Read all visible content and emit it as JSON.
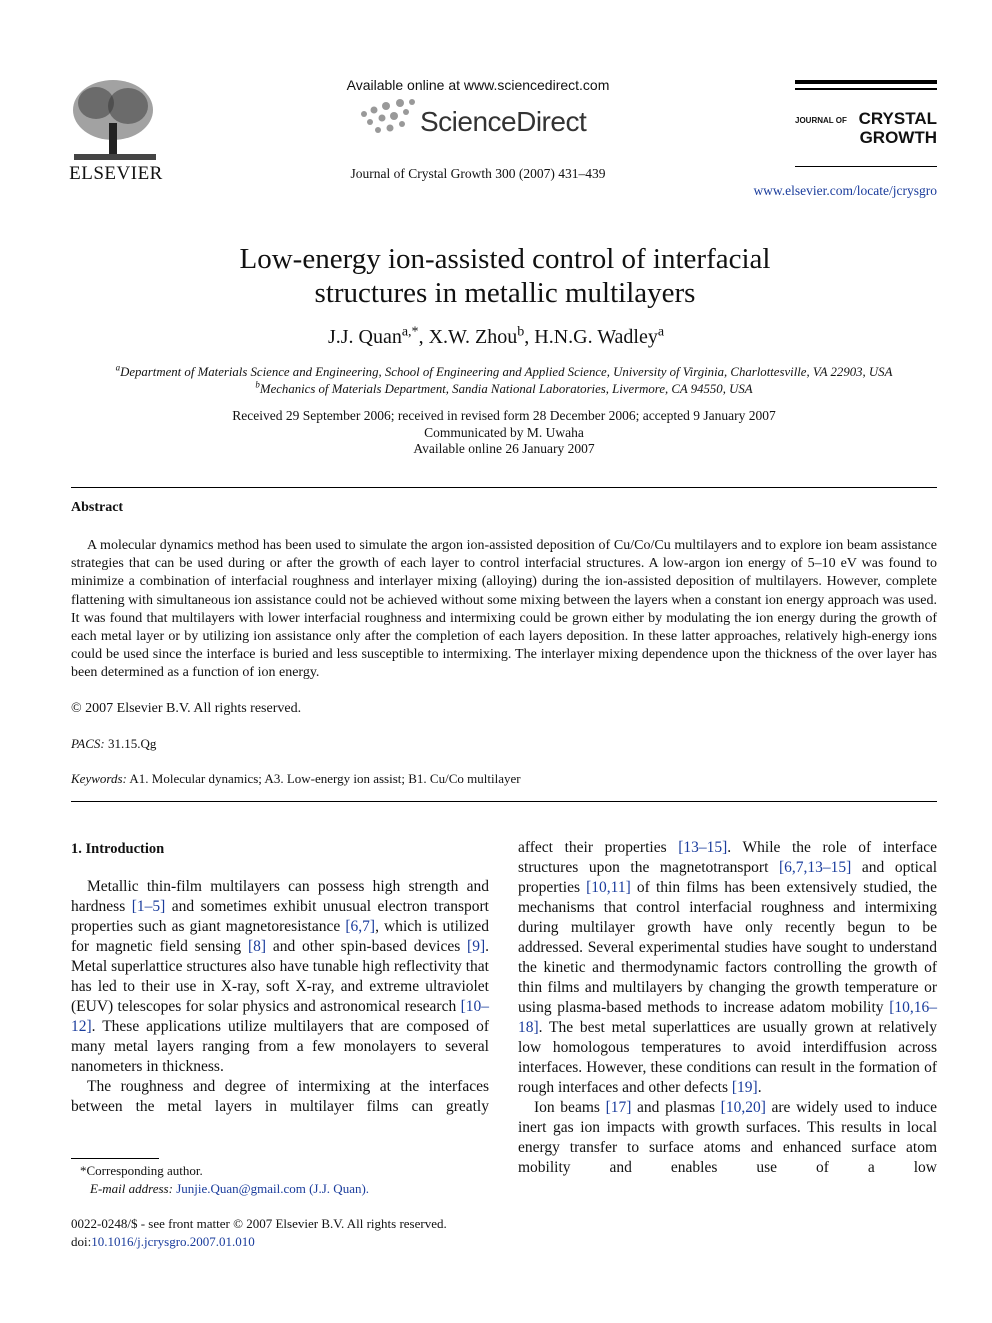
{
  "header": {
    "elsevier": "ELSEVIER",
    "available_online": "Available online at www.sciencedirect.com",
    "sciencedirect": "ScienceDirect",
    "citation": "Journal of Crystal Growth 300 (2007) 431–439",
    "journal_logo": {
      "prefix": "JOURNAL OF",
      "line1": "CRYSTAL",
      "line2": "GROWTH"
    },
    "journal_url": "www.elsevier.com/locate/jcrysgro"
  },
  "article": {
    "title": "Low-energy ion-assisted control of interfacial structures in metallic multilayers",
    "authors": [
      "J.J. Quan",
      "a,*",
      ", X.W. Zhou",
      "b",
      ", H.N.G. Wadley",
      "a"
    ],
    "affiliations": [
      [
        "a",
        "Department of Materials Science and Engineering, School of Engineering and Applied Science, University of Virginia, Charlottesville, VA 22903, USA"
      ],
      [
        "b",
        "Mechanics of Materials Department, Sandia National Laboratories, Livermore, CA 94550, USA"
      ]
    ],
    "dates": [
      "Received 29 September 2006; received in revised form 28 December 2006; accepted 9 January 2007",
      "Communicated by M. Uwaha",
      "Available online 26 January 2007"
    ]
  },
  "abstract": {
    "heading": "Abstract",
    "text": "A molecular dynamics method has been used to simulate the argon ion-assisted deposition of Cu/Co/Cu multilayers and to explore ion beam assistance strategies that can be used during or after the growth of each layer to control interfacial structures. A low-argon ion energy of 5–10 eV was found to minimize a combination of interfacial roughness and interlayer mixing (alloying) during the ion-assisted deposition of multilayers. However, complete flattening with simultaneous ion assistance could not be achieved without some mixing between the layers when a constant ion energy approach was used. It was found that multilayers with lower interfacial roughness and intermixing could be grown either by modulating the ion energy during the growth of each metal layer or by utilizing ion assistance only after the completion of each layers deposition. In these latter approaches, relatively high-energy ions could be used since the interface is buried and less susceptible to intermixing. The interlayer mixing dependence upon the thickness of the over layer has been determined as a function of ion energy.",
    "copyright": "© 2007 Elsevier B.V. All rights reserved."
  },
  "pacs": {
    "label": "PACS:",
    "value": "31.15.Qg"
  },
  "keywords": {
    "label": "Keywords:",
    "value": "A1. Molecular dynamics; A3. Low-energy ion assist; B1. Cu/Co multilayer"
  },
  "body": {
    "heading": "1. Introduction",
    "left_paragraphs": [
      [
        "Metallic thin-film multilayers can possess high strength and hardness ",
        "[1–5]",
        " and sometimes exhibit unusual electron transport properties such as giant magnetoresistance ",
        "[6,7]",
        ", which is utilized for magnetic field sensing ",
        "[8]",
        " and other spin-based devices ",
        "[9]",
        ". Metal superlattice structures also have tunable high reflectivity that has led to their use in X-ray, soft X-ray, and extreme ultraviolet (EUV) telescopes for solar physics and astronomical research ",
        "[10–12]",
        ". These applications utilize multilayers that are composed of many metal layers ranging from a few monolayers to several nanometers in thickness."
      ],
      [
        "The roughness and degree of intermixing at the interfaces between the metal layers in multilayer films can greatly"
      ]
    ],
    "right_paragraphs": [
      [
        "affect their properties ",
        "[13–15]",
        ". While the role of interface structures upon the magnetotransport ",
        "[6,7,13–15]",
        " and optical properties ",
        "[10,11]",
        " of thin films has been extensively studied, the mechanisms that control interfacial roughness and intermixing during multilayer growth have only recently begun to be addressed. Several experimental studies have sought to understand the kinetic and thermodynamic factors controlling the growth of thin films and multilayers by changing the growth temperature or using plasma-based methods to increase adatom mobility ",
        "[10,16–18]",
        ". The best metal superlattices are usually grown at relatively low homologous temperatures to avoid interdiffusion across interfaces. However, these conditions can result in the formation of rough interfaces and other defects ",
        "[19]",
        "."
      ],
      [
        "Ion beams ",
        "[17]",
        " and plasmas ",
        "[10,20]",
        " are widely used to induce inert gas ion impacts with growth surfaces. This results in local energy transfer to surface atoms and enhanced surface atom mobility and enables use of a low"
      ]
    ]
  },
  "footnote": {
    "corresponding": "*Corresponding author.",
    "email_label": "E-mail address:",
    "email": "Junjie.Quan@gmail.com (J.J. Quan)."
  },
  "footer": {
    "issn": "0022-0248/$ - see front matter © 2007 Elsevier B.V. All rights reserved.",
    "doi_label": "doi:",
    "doi": "10.1016/j.jcrysgro.2007.01.010"
  }
}
